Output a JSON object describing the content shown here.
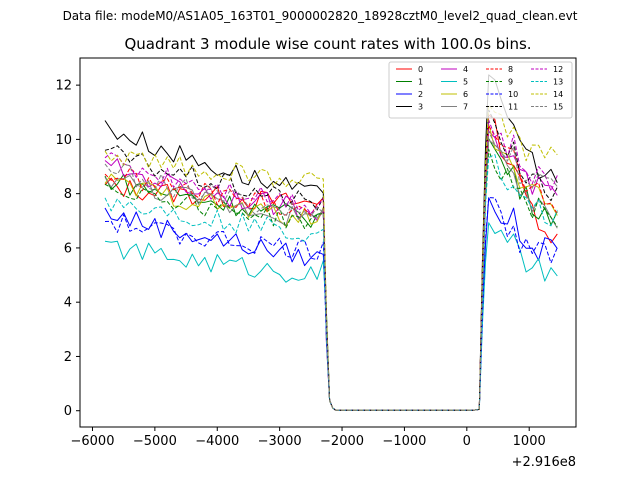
{
  "chart_data": {
    "type": "line",
    "suptitle": "Data file: modeM0/AS1A05_163T01_9000002820_18928cztM0_level2_quad_clean.evt",
    "title": "Quadrant 3 module wise count rates with 100.0s bins.",
    "offset_label": "+2.916e8",
    "xlabel": "",
    "ylabel": "",
    "xlim": [
      -6200,
      1750
    ],
    "ylim": [
      -0.6,
      13.0
    ],
    "x_ticks": [
      -6000,
      -5000,
      -4000,
      -3000,
      -2000,
      -1000,
      0,
      1000
    ],
    "x_tick_labels": [
      "−6000",
      "−5000",
      "−4000",
      "−3000",
      "−2000",
      "−1000",
      "0",
      "1000"
    ],
    "y_ticks": [
      0,
      2,
      4,
      6,
      8,
      10,
      12
    ],
    "y_tick_labels": [
      "0",
      "2",
      "4",
      "6",
      "8",
      "10",
      "12"
    ],
    "legend_position": "top-right",
    "gap_x": [
      -2200,
      200
    ],
    "series": [
      {
        "name": "0",
        "color": "#ff0000",
        "dash": "solid",
        "base1": 8.3,
        "base2": 7.6,
        "peak": 11.0,
        "end": 6.3
      },
      {
        "name": "1",
        "color": "#008000",
        "dash": "solid",
        "base1": 8.6,
        "base2": 7.1,
        "peak": 10.0,
        "end": 7.2
      },
      {
        "name": "2",
        "color": "#0000ff",
        "dash": "solid",
        "base1": 7.4,
        "base2": 5.6,
        "peak": 7.9,
        "end": 5.9
      },
      {
        "name": "3",
        "color": "#000000",
        "dash": "solid",
        "base1": 10.6,
        "base2": 7.9,
        "peak": 12.3,
        "end": 8.4
      },
      {
        "name": "4",
        "color": "#bf00bf",
        "dash": "solid",
        "base1": 9.1,
        "base2": 7.3,
        "peak": 10.3,
        "end": 8.0
      },
      {
        "name": "5",
        "color": "#00bfbf",
        "dash": "solid",
        "base1": 6.1,
        "base2": 5.0,
        "peak": 7.0,
        "end": 5.1
      },
      {
        "name": "6",
        "color": "#bfbf00",
        "dash": "solid",
        "base1": 8.5,
        "base2": 7.0,
        "peak": 10.5,
        "end": 7.4
      },
      {
        "name": "7",
        "color": "#808080",
        "dash": "solid",
        "base1": 8.7,
        "base2": 7.0,
        "peak": 10.0,
        "end": 7.0
      },
      {
        "name": "8",
        "color": "#ff0000",
        "dash": "dashed",
        "base1": 8.8,
        "base2": 7.4,
        "peak": 10.6,
        "end": 7.6
      },
      {
        "name": "9",
        "color": "#008000",
        "dash": "dashed",
        "base1": 8.4,
        "base2": 6.9,
        "peak": 9.6,
        "end": 7.2
      },
      {
        "name": "10",
        "color": "#0000ff",
        "dash": "dashed",
        "base1": 7.0,
        "base2": 5.9,
        "peak": 7.9,
        "end": 5.6
      },
      {
        "name": "11",
        "color": "#000000",
        "dash": "dashed",
        "base1": 9.6,
        "base2": 7.6,
        "peak": 11.0,
        "end": 7.9
      },
      {
        "name": "12",
        "color": "#bf00bf",
        "dash": "dashed",
        "base1": 9.3,
        "base2": 7.6,
        "peak": 10.7,
        "end": 8.4
      },
      {
        "name": "13",
        "color": "#00bfbf",
        "dash": "dashed",
        "base1": 7.8,
        "base2": 6.5,
        "peak": 9.4,
        "end": 7.2
      },
      {
        "name": "14",
        "color": "#bfbf00",
        "dash": "dashed",
        "base1": 9.5,
        "base2": 8.4,
        "peak": 11.2,
        "end": 9.3
      },
      {
        "name": "15",
        "color": "#808080",
        "dash": "dashed",
        "base1": 9.0,
        "base2": 7.2,
        "peak": 10.3,
        "end": 8.2
      }
    ]
  }
}
